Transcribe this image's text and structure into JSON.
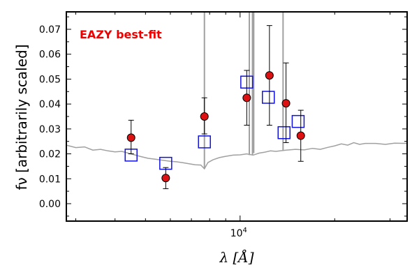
{
  "chart_data": {
    "type": "scatter",
    "xscale": "log",
    "xlim": [
      2800,
      34000
    ],
    "ylim": [
      -0.007,
      0.077
    ],
    "xlabel": "λ [Å]",
    "ylabel": "fν [arbitrarily scaled]",
    "annotation": "EAZY best-fit",
    "grid": false,
    "xticks": [
      {
        "value": 10000,
        "label": "10",
        "exponent": "4"
      }
    ],
    "yticks": [
      0.0,
      0.01,
      0.02,
      0.03,
      0.04,
      0.05,
      0.06,
      0.07
    ],
    "ytick_labels": [
      "0.00",
      "0.01",
      "0.02",
      "0.03",
      "0.04",
      "0.05",
      "0.06",
      "0.07"
    ],
    "observed": [
      {
        "x": 4500,
        "y": 0.0265,
        "ylo": 0.02,
        "yhi": 0.0335
      },
      {
        "x": 5800,
        "y": 0.0103,
        "ylo": 0.006,
        "yhi": 0.0145
      },
      {
        "x": 7700,
        "y": 0.035,
        "ylo": 0.028,
        "yhi": 0.0425
      },
      {
        "x": 10500,
        "y": 0.0425,
        "ylo": 0.0315,
        "yhi": 0.0535
      },
      {
        "x": 12400,
        "y": 0.0515,
        "ylo": 0.0315,
        "yhi": 0.0715
      },
      {
        "x": 14000,
        "y": 0.0403,
        "ylo": 0.0245,
        "yhi": 0.0565
      },
      {
        "x": 15600,
        "y": 0.0273,
        "ylo": 0.017,
        "yhi": 0.0375
      }
    ],
    "model_photometry": [
      {
        "x": 4500,
        "y": 0.0195
      },
      {
        "x": 5800,
        "y": 0.0162
      },
      {
        "x": 7700,
        "y": 0.0248
      },
      {
        "x": 10500,
        "y": 0.0488
      },
      {
        "x": 12300,
        "y": 0.0427
      },
      {
        "x": 13800,
        "y": 0.0285
      },
      {
        "x": 15300,
        "y": 0.033
      }
    ],
    "template_spectrum": {
      "x": [
        2800,
        3000,
        3200,
        3400,
        3600,
        3800,
        4000,
        4200,
        4500,
        4800,
        5100,
        5400,
        5700,
        6000,
        6300,
        6600,
        6900,
        7200,
        7500,
        7700,
        7900,
        8200,
        8600,
        9000,
        9500,
        10000,
        10500,
        11000,
        11500,
        12000,
        12500,
        13000,
        14000,
        15000,
        16000,
        17000,
        18000,
        19000,
        20000,
        21000,
        22000,
        23000,
        24000,
        25000,
        27000,
        29000,
        31000,
        34000
      ],
      "y": [
        0.0235,
        0.0225,
        0.0228,
        0.0215,
        0.0218,
        0.0212,
        0.0208,
        0.021,
        0.02,
        0.019,
        0.0182,
        0.0178,
        0.0174,
        0.017,
        0.0168,
        0.0164,
        0.016,
        0.0156,
        0.0155,
        0.014,
        0.0165,
        0.0176,
        0.0185,
        0.019,
        0.0195,
        0.0196,
        0.02,
        0.0195,
        0.0203,
        0.0207,
        0.0212,
        0.021,
        0.0215,
        0.0218,
        0.0216,
        0.0222,
        0.0218,
        0.0226,
        0.0232,
        0.024,
        0.0235,
        0.0245,
        0.0238,
        0.0242,
        0.0242,
        0.0238,
        0.0243,
        0.0242
      ]
    },
    "emission_lines": [
      {
        "x": 7700,
        "y_top": 0.077
      },
      {
        "x": 10700,
        "y_top": 0.077
      },
      {
        "x": 10950,
        "y_top": 0.077
      },
      {
        "x": 11050,
        "y_top": 0.077
      },
      {
        "x": 13700,
        "y_top": 0.077
      }
    ],
    "colors": {
      "template": "#a0a0a0",
      "observed_fill": "#dd1111",
      "observed_edge": "#000000",
      "model_edge": "#1111dd",
      "annotation": "#ee0000"
    }
  }
}
